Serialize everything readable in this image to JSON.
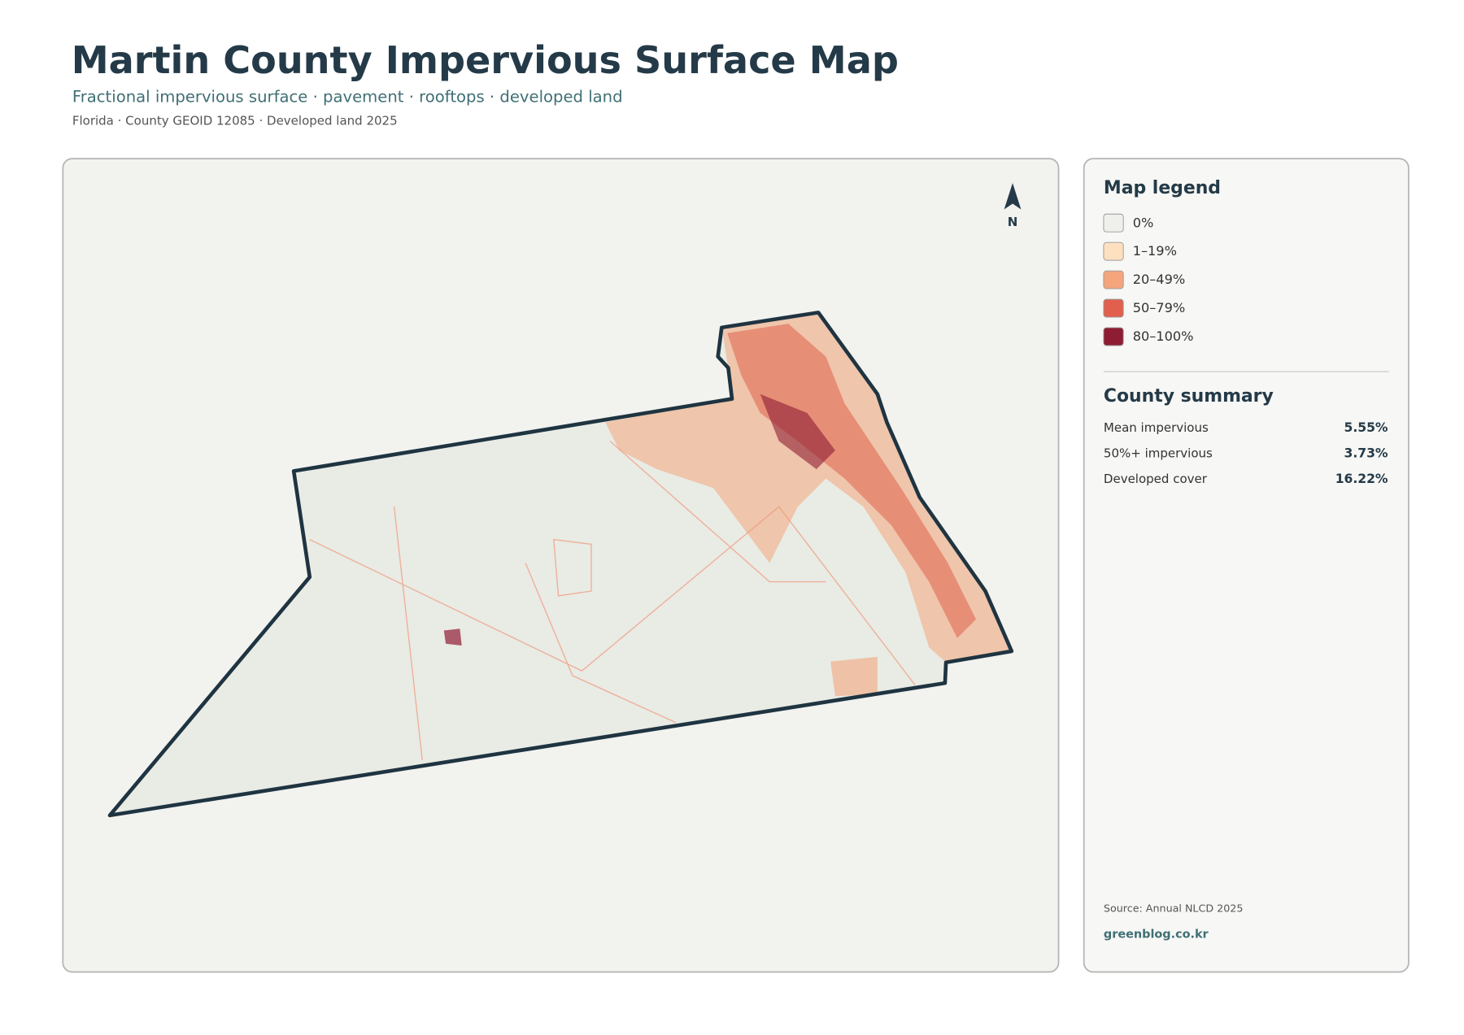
{
  "header": {
    "title": "Martin County Impervious Surface Map",
    "subtitle": "Fractional impervious surface · pavement · rooftops · developed land",
    "meta": "Florida · County GEOID 12085 · Developed land 2025"
  },
  "map": {
    "north_label": "N"
  },
  "legend": {
    "title": "Map legend",
    "items": [
      {
        "label": "0%",
        "color": "#efefec"
      },
      {
        "label": "1–19%",
        "color": "#fde0c0"
      },
      {
        "label": "20–49%",
        "color": "#f4a57c"
      },
      {
        "label": "50–79%",
        "color": "#e0604d"
      },
      {
        "label": "80–100%",
        "color": "#8e1c33"
      }
    ]
  },
  "summary": {
    "title": "County summary",
    "rows": [
      {
        "label": "Mean impervious",
        "value": "5.55%"
      },
      {
        "label": "50%+ impervious",
        "value": "3.73%"
      },
      {
        "label": "Developed cover",
        "value": "16.22%"
      }
    ]
  },
  "footer": {
    "source": "Source: Annual NLCD 2025",
    "site": "greenblog.co.kr"
  }
}
